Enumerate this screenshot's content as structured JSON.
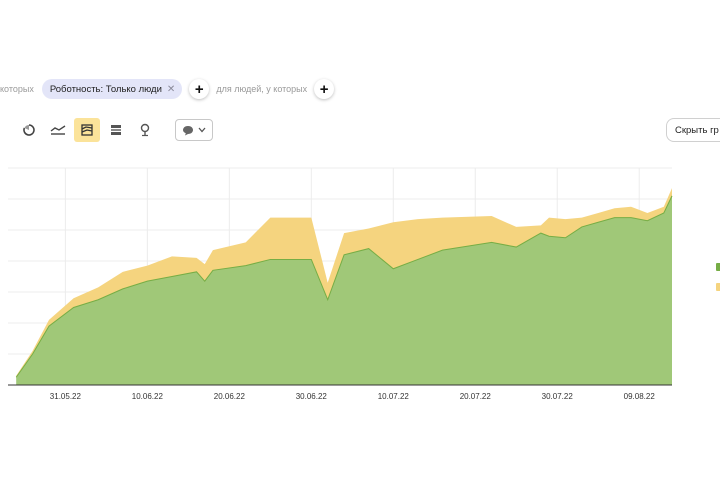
{
  "filters": {
    "prefix_text": "которых",
    "chip_label": "Роботность: Только люди",
    "chip_close": "✕",
    "add_label": "+",
    "people_text": "для людей, у которых"
  },
  "toolbar": {
    "buttons": [
      {
        "icon": "pie-chart-icon"
      },
      {
        "icon": "line-chart-icon"
      },
      {
        "icon": "stacked-area-icon",
        "active": true
      },
      {
        "icon": "stacked-bar-icon"
      },
      {
        "icon": "map-pin-icon"
      }
    ],
    "comment_icon": "speech-bubble-icon",
    "hide_label": "Скрыть гр"
  },
  "colors": {
    "green": "#a0c878",
    "green_edge": "#76ad45",
    "yellow": "#f5d47f",
    "grid": "#ececec",
    "axis": "#333333"
  },
  "chart_data": {
    "type": "area",
    "stacked": true,
    "grid": true,
    "x": [
      "2022-05-25",
      "2022-05-27",
      "2022-05-29",
      "2022-06-01",
      "2022-06-04",
      "2022-06-07",
      "2022-06-10",
      "2022-06-13",
      "2022-06-16",
      "2022-06-17",
      "2022-06-18",
      "2022-06-22",
      "2022-06-25",
      "2022-06-30",
      "2022-07-02",
      "2022-07-04",
      "2022-07-07",
      "2022-07-10",
      "2022-07-13",
      "2022-07-16",
      "2022-07-22",
      "2022-07-25",
      "2022-07-28",
      "2022-07-29",
      "2022-07-31",
      "2022-08-02",
      "2022-08-04",
      "2022-08-06",
      "2022-08-08",
      "2022-08-10",
      "2022-08-12",
      "2022-08-13"
    ],
    "series": [
      {
        "color": "#a0c878",
        "values": [
          0.5,
          2,
          3.8,
          5,
          5.5,
          6.2,
          6.7,
          7,
          7.3,
          6.7,
          7.4,
          7.7,
          8.1,
          8.1,
          5.5,
          8.4,
          8.8,
          7.5,
          8.1,
          8.7,
          9.2,
          8.9,
          9.8,
          9.6,
          9.5,
          10.2,
          10.5,
          10.8,
          10.8,
          10.6,
          11.1,
          12.2
        ]
      },
      {
        "color": "#f5d47f",
        "values": [
          0.1,
          0.2,
          0.4,
          0.6,
          0.8,
          1.1,
          1,
          1.3,
          0.9,
          1.1,
          1.3,
          1.5,
          2.7,
          2.7,
          1.1,
          1.4,
          1.3,
          3,
          2.6,
          2.1,
          1.7,
          1.3,
          0.5,
          1.2,
          1.2,
          0.6,
          0.6,
          0.6,
          0.7,
          0.5,
          0.4,
          0.5
        ]
      }
    ],
    "ylim": [
      0,
      14
    ],
    "x_ticks": [
      "31.05.22",
      "10.06.22",
      "20.06.22",
      "30.06.22",
      "10.07.22",
      "20.07.22",
      "30.07.22",
      "09.08.22"
    ]
  }
}
